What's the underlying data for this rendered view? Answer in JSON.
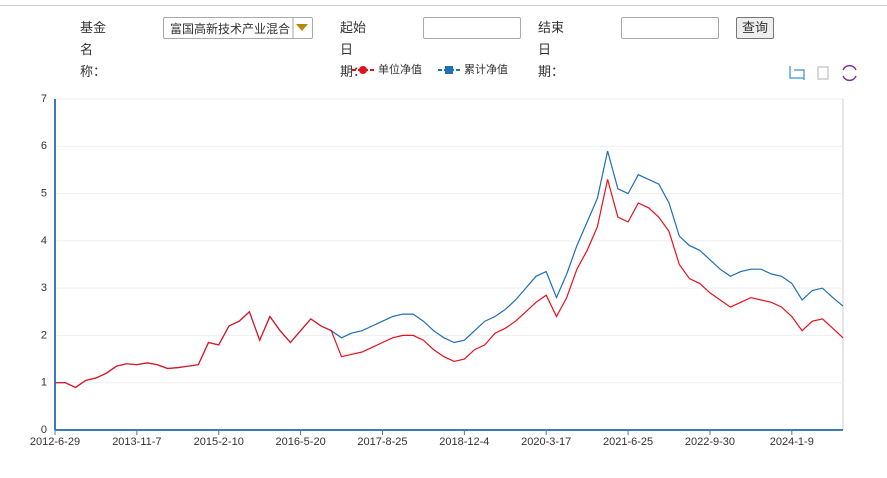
{
  "form": {
    "fund_label": "基金名称：",
    "fund_value": "富国高新技术产业混合",
    "start_label": "起始日期：",
    "end_label": "结束日期：",
    "query_button": "查询"
  },
  "chart_data": {
    "type": "line",
    "categories": [
      "2012-6-29",
      null,
      null,
      null,
      null,
      null,
      null,
      null,
      "2013-11-7",
      null,
      null,
      null,
      null,
      null,
      null,
      null,
      "2015-2-10",
      null,
      null,
      null,
      null,
      null,
      null,
      null,
      "2016-5-20",
      null,
      null,
      null,
      null,
      null,
      null,
      null,
      "2017-8-25",
      null,
      null,
      null,
      null,
      null,
      null,
      null,
      "2018-12-4",
      null,
      null,
      null,
      null,
      null,
      null,
      null,
      "2020-3-17",
      null,
      null,
      null,
      null,
      null,
      null,
      null,
      "2021-6-25",
      null,
      null,
      null,
      null,
      null,
      null,
      null,
      "2022-9-30",
      null,
      null,
      null,
      null,
      null,
      null,
      null,
      "2024-1-9",
      null,
      null,
      null,
      null,
      null
    ],
    "series": [
      {
        "name": "单位净值",
        "color": "#e8101c",
        "values": [
          1.0,
          1.0,
          0.9,
          1.05,
          1.1,
          1.2,
          1.35,
          1.4,
          1.38,
          1.42,
          1.38,
          1.3,
          1.32,
          1.35,
          1.38,
          1.85,
          1.8,
          2.2,
          2.3,
          2.5,
          1.9,
          2.4,
          2.1,
          1.85,
          2.1,
          2.35,
          2.2,
          2.1,
          1.55,
          1.6,
          1.65,
          1.75,
          1.85,
          1.95,
          2.0,
          2.0,
          1.9,
          1.7,
          1.55,
          1.45,
          1.5,
          1.7,
          1.8,
          2.05,
          2.15,
          2.3,
          2.5,
          2.7,
          2.85,
          2.4,
          2.8,
          3.4,
          3.8,
          4.3,
          5.3,
          4.5,
          4.4,
          4.8,
          4.7,
          4.5,
          4.2,
          3.5,
          3.2,
          3.1,
          2.9,
          2.75,
          2.6,
          2.7,
          2.8,
          2.75,
          2.7,
          2.6,
          2.4,
          2.1,
          2.3,
          2.35,
          2.15,
          1.95
        ]
      },
      {
        "name": "累计净值",
        "color": "#1f6fb5",
        "values": [
          1.0,
          1.0,
          0.9,
          1.05,
          1.1,
          1.2,
          1.35,
          1.4,
          1.38,
          1.42,
          1.38,
          1.3,
          1.32,
          1.35,
          1.38,
          1.85,
          1.8,
          2.2,
          2.3,
          2.5,
          1.9,
          2.4,
          2.1,
          1.85,
          2.1,
          2.35,
          2.2,
          2.1,
          1.95,
          2.05,
          2.1,
          2.2,
          2.3,
          2.4,
          2.45,
          2.45,
          2.3,
          2.1,
          1.95,
          1.85,
          1.9,
          2.1,
          2.3,
          2.4,
          2.55,
          2.75,
          3.0,
          3.25,
          3.35,
          2.8,
          3.3,
          3.9,
          4.4,
          4.9,
          5.9,
          5.1,
          5.0,
          5.4,
          5.3,
          5.2,
          4.8,
          4.1,
          3.9,
          3.8,
          3.6,
          3.4,
          3.25,
          3.35,
          3.4,
          3.4,
          3.3,
          3.25,
          3.1,
          2.75,
          2.95,
          3.0,
          2.8,
          2.62
        ]
      }
    ],
    "ylim": [
      0,
      7
    ],
    "yticks": [
      0,
      1,
      2,
      3,
      4,
      5,
      6,
      7
    ],
    "grid": true
  }
}
